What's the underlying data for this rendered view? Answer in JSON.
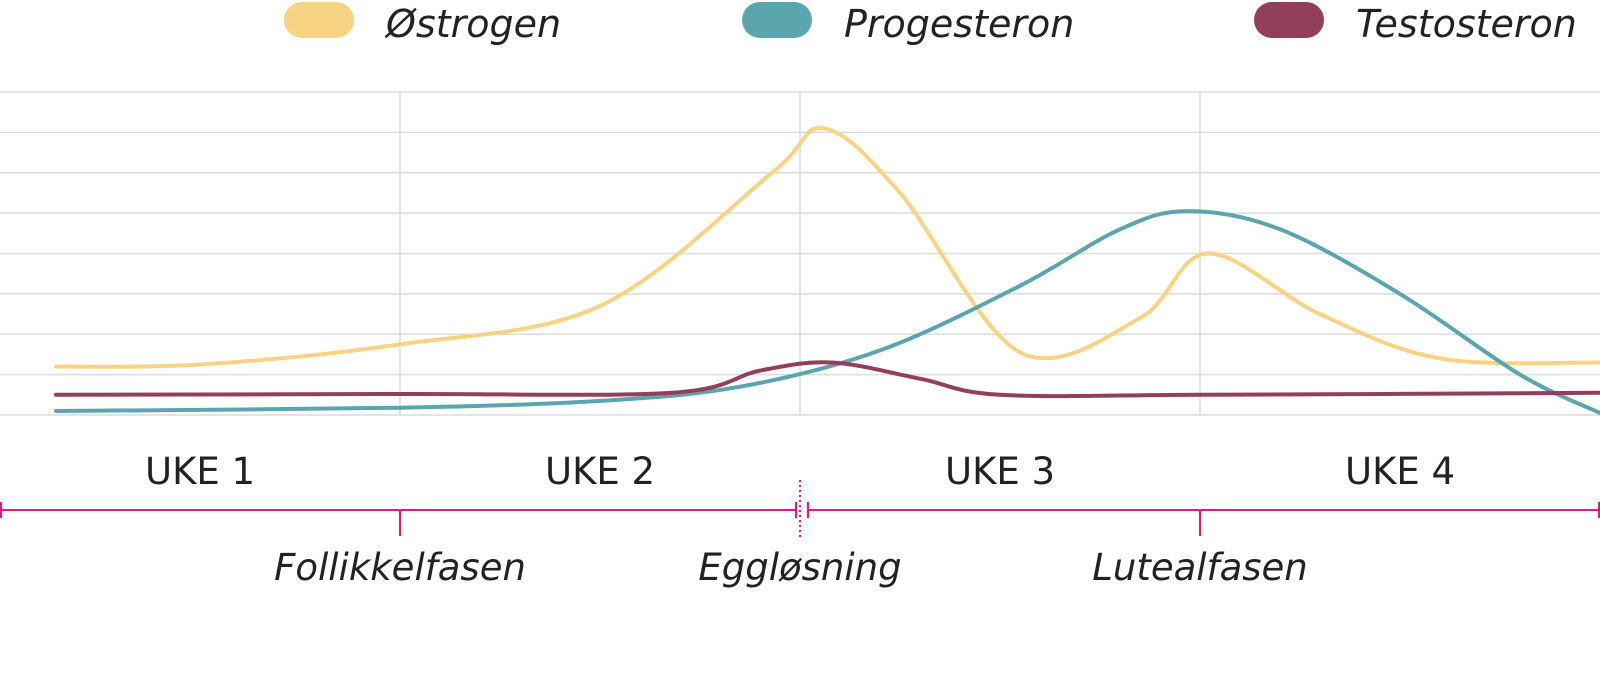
{
  "chart_data": {
    "type": "line",
    "title": "",
    "xlabel": "",
    "ylabel": "",
    "x_range": [
      0,
      4
    ],
    "ylim": [
      0,
      8
    ],
    "grid": true,
    "legend_position": "top",
    "series": [
      {
        "name": "Østrogen",
        "color": "#f8d383",
        "points": [
          [
            0.14,
            1.2
          ],
          [
            0.5,
            1.25
          ],
          [
            1.0,
            1.75
          ],
          [
            1.5,
            2.7
          ],
          [
            1.93,
            6.0
          ],
          [
            2.06,
            7.1
          ],
          [
            2.25,
            5.5
          ],
          [
            2.55,
            1.55
          ],
          [
            2.85,
            2.4
          ],
          [
            3.02,
            4.0
          ],
          [
            3.3,
            2.5
          ],
          [
            3.6,
            1.4
          ],
          [
            4.0,
            1.3
          ]
        ]
      },
      {
        "name": "Progesteron",
        "color": "#5ba6ae",
        "points": [
          [
            0.14,
            0.1
          ],
          [
            1.0,
            0.18
          ],
          [
            1.5,
            0.35
          ],
          [
            1.85,
            0.7
          ],
          [
            2.2,
            1.6
          ],
          [
            2.55,
            3.2
          ],
          [
            2.8,
            4.6
          ],
          [
            2.97,
            5.05
          ],
          [
            3.2,
            4.6
          ],
          [
            3.5,
            3.0
          ],
          [
            3.8,
            1.0
          ],
          [
            4.0,
            0.05
          ]
        ]
      },
      {
        "name": "Testosteron",
        "color": "#933f5c",
        "points": [
          [
            0.14,
            0.5
          ],
          [
            1.0,
            0.52
          ],
          [
            1.68,
            0.55
          ],
          [
            1.9,
            1.1
          ],
          [
            2.08,
            1.3
          ],
          [
            2.3,
            0.9
          ],
          [
            2.5,
            0.5
          ],
          [
            3.0,
            0.5
          ],
          [
            4.0,
            0.55
          ]
        ]
      }
    ],
    "week_labels": [
      "UKE 1",
      "UKE 2",
      "UKE 3",
      "UKE 4"
    ],
    "phase_labels": [
      {
        "label": "Follikkelfasen",
        "at": 1.0
      },
      {
        "label": "Eggløsning",
        "at": 2.0
      },
      {
        "label": "Lutealfasen",
        "at": 3.0
      }
    ],
    "phase_axis_color": "#e0197d",
    "phase_ticks": [
      0,
      1,
      1.99,
      2.02,
      3,
      4
    ]
  }
}
